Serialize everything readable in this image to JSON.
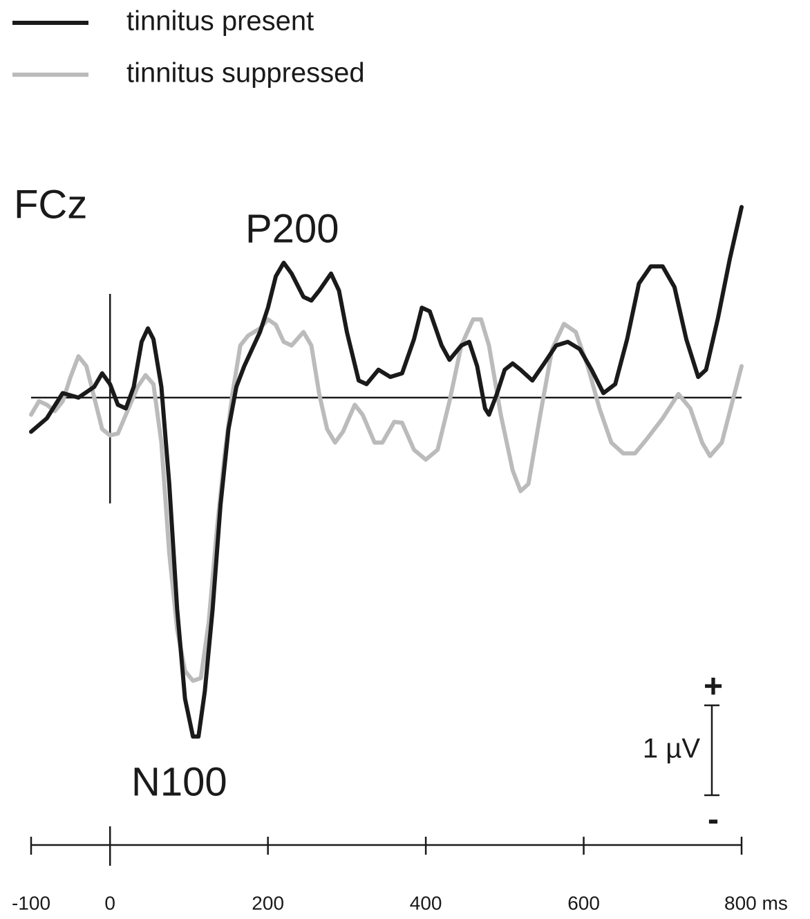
{
  "chart_data": {
    "type": "line",
    "legend": "top-left",
    "annotations": [
      "FCz",
      "P200",
      "N100"
    ],
    "scale_bar": {
      "label": "1 µV",
      "value": 1,
      "plus": "+",
      "minus": "-"
    },
    "xlim": [
      -100,
      800
    ],
    "ylim": [
      -4.5,
      2.5
    ],
    "xticks": [
      -100,
      0,
      200,
      400,
      600,
      {
        "value": 800,
        "label": "800 ms"
      }
    ],
    "series": [
      {
        "name": "tinnitus present",
        "color": "#1a1a1a",
        "x": [
          -100,
          -80,
          -60,
          -40,
          -20,
          -10,
          0,
          10,
          20,
          30,
          40,
          48,
          55,
          65,
          75,
          85,
          95,
          105,
          112,
          120,
          130,
          140,
          150,
          160,
          170,
          180,
          190,
          200,
          210,
          220,
          230,
          245,
          255,
          265,
          280,
          290,
          300,
          315,
          325,
          340,
          355,
          370,
          385,
          395,
          405,
          420,
          430,
          445,
          455,
          465,
          475,
          480,
          490,
          500,
          510,
          520,
          535,
          550,
          565,
          580,
          595,
          610,
          625,
          640,
          655,
          670,
          685,
          700,
          715,
          730,
          745,
          755,
          770,
          785,
          800
        ],
        "values": [
          -0.38,
          -0.23,
          0.05,
          0,
          0.12,
          0.27,
          0.15,
          -0.08,
          -0.12,
          0.12,
          0.62,
          0.77,
          0.65,
          0.12,
          -0.96,
          -2.35,
          -3.35,
          -3.77,
          -3.77,
          -3.27,
          -2.35,
          -1.19,
          -0.35,
          0.12,
          0.35,
          0.54,
          0.73,
          1.0,
          1.35,
          1.5,
          1.38,
          1.12,
          1.08,
          1.19,
          1.38,
          1.19,
          0.73,
          0.19,
          0.15,
          0.31,
          0.23,
          0.27,
          0.65,
          1.0,
          0.96,
          0.58,
          0.42,
          0.58,
          0.62,
          0.35,
          -0.12,
          -0.19,
          0.04,
          0.31,
          0.38,
          0.31,
          0.19,
          0.38,
          0.58,
          0.62,
          0.54,
          0.31,
          0.05,
          0.15,
          0.65,
          1.27,
          1.46,
          1.46,
          1.23,
          0.65,
          0.23,
          0.31,
          0.88,
          1.54,
          2.12
        ]
      },
      {
        "name": "tinnitus suppressed",
        "color": "#bbbbbb",
        "x": [
          -100,
          -90,
          -80,
          -70,
          -60,
          -50,
          -40,
          -30,
          -20,
          -10,
          0,
          10,
          20,
          35,
          45,
          55,
          65,
          75,
          85,
          95,
          105,
          115,
          125,
          135,
          145,
          155,
          165,
          175,
          190,
          200,
          210,
          220,
          230,
          245,
          255,
          265,
          275,
          285,
          295,
          310,
          320,
          335,
          345,
          360,
          370,
          385,
          400,
          415,
          430,
          445,
          460,
          470,
          480,
          495,
          510,
          520,
          530,
          545,
          560,
          575,
          590,
          605,
          620,
          635,
          650,
          665,
          680,
          700,
          720,
          735,
          750,
          760,
          775,
          800
        ],
        "values": [
          -0.19,
          -0.04,
          -0.08,
          -0.15,
          -0.04,
          0.23,
          0.46,
          0.35,
          0,
          -0.35,
          -0.42,
          -0.4,
          -0.19,
          0.12,
          0.25,
          0.15,
          -0.5,
          -1.73,
          -2.58,
          -3.04,
          -3.15,
          -3.12,
          -2.5,
          -1.5,
          -0.65,
          0.04,
          0.58,
          0.69,
          0.77,
          0.87,
          0.81,
          0.62,
          0.58,
          0.73,
          0.58,
          0.04,
          -0.35,
          -0.5,
          -0.38,
          -0.08,
          -0.19,
          -0.5,
          -0.5,
          -0.27,
          -0.28,
          -0.58,
          -0.69,
          -0.58,
          -0.04,
          0.58,
          0.87,
          0.87,
          0.58,
          -0.19,
          -0.81,
          -1.04,
          -0.96,
          -0.19,
          0.54,
          0.82,
          0.73,
          0.35,
          -0.12,
          -0.5,
          -0.62,
          -0.62,
          -0.46,
          -0.23,
          0.04,
          -0.12,
          -0.5,
          -0.65,
          -0.5,
          0.35
        ]
      }
    ]
  }
}
